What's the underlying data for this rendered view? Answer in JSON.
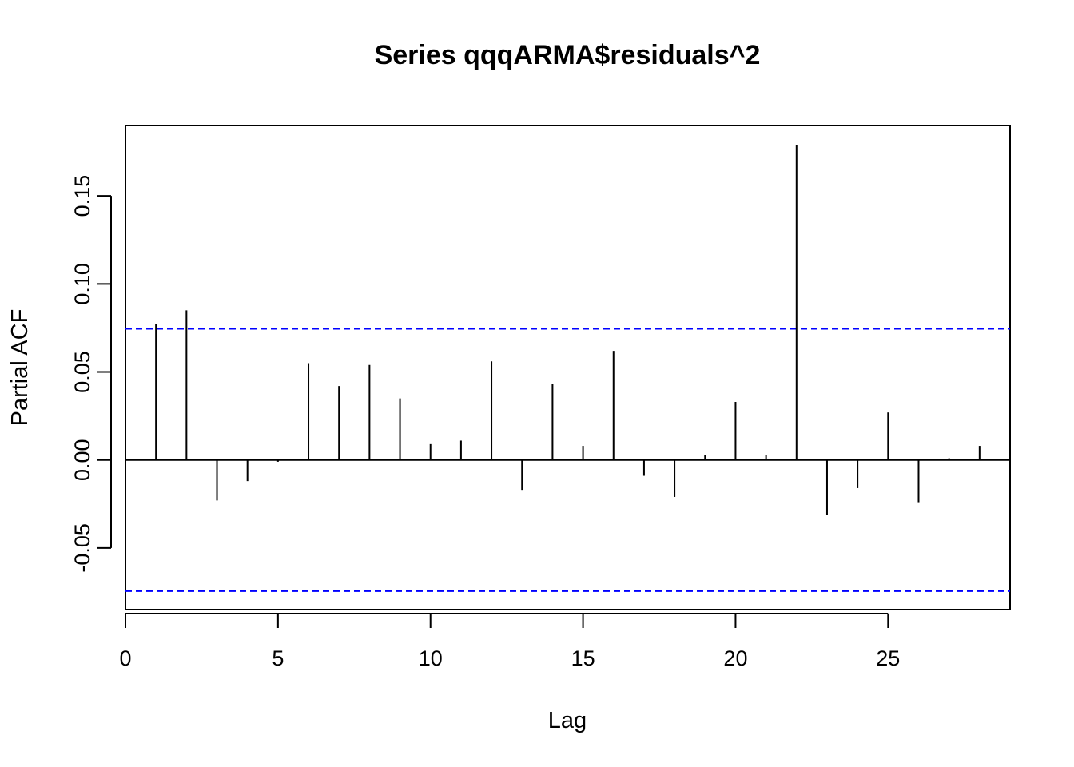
{
  "chart_data": {
    "type": "bar",
    "title": "Series  qqqARMA$residuals^2",
    "xlabel": "Lag",
    "ylabel": "Partial ACF",
    "xlim": [
      0,
      29
    ],
    "ylim": [
      -0.085,
      0.19
    ],
    "x_ticks": [
      0,
      5,
      10,
      15,
      20,
      25
    ],
    "x_tick_labels": [
      "0",
      "5",
      "10",
      "15",
      "20",
      "25"
    ],
    "y_ticks": [
      -0.05,
      0.0,
      0.05,
      0.1,
      0.15
    ],
    "y_tick_labels": [
      "-0.05",
      "0.00",
      "0.05",
      "0.10",
      "0.15"
    ],
    "lags": [
      1,
      2,
      3,
      4,
      5,
      6,
      7,
      8,
      9,
      10,
      11,
      12,
      13,
      14,
      15,
      16,
      17,
      18,
      19,
      20,
      21,
      22,
      23,
      24,
      25,
      26,
      27,
      28
    ],
    "values": [
      0.077,
      0.085,
      -0.023,
      -0.012,
      -0.001,
      0.055,
      0.042,
      0.054,
      0.035,
      0.009,
      0.011,
      0.056,
      -0.017,
      0.043,
      0.008,
      0.062,
      -0.009,
      -0.021,
      0.003,
      0.033,
      0.003,
      0.179,
      -0.031,
      -0.016,
      0.027,
      -0.024,
      0.001,
      0.008
    ],
    "confidence_bound": 0.0745,
    "confidence_color": "#0000ff",
    "bar_color": "#000000",
    "grid": false,
    "legend": "none"
  }
}
